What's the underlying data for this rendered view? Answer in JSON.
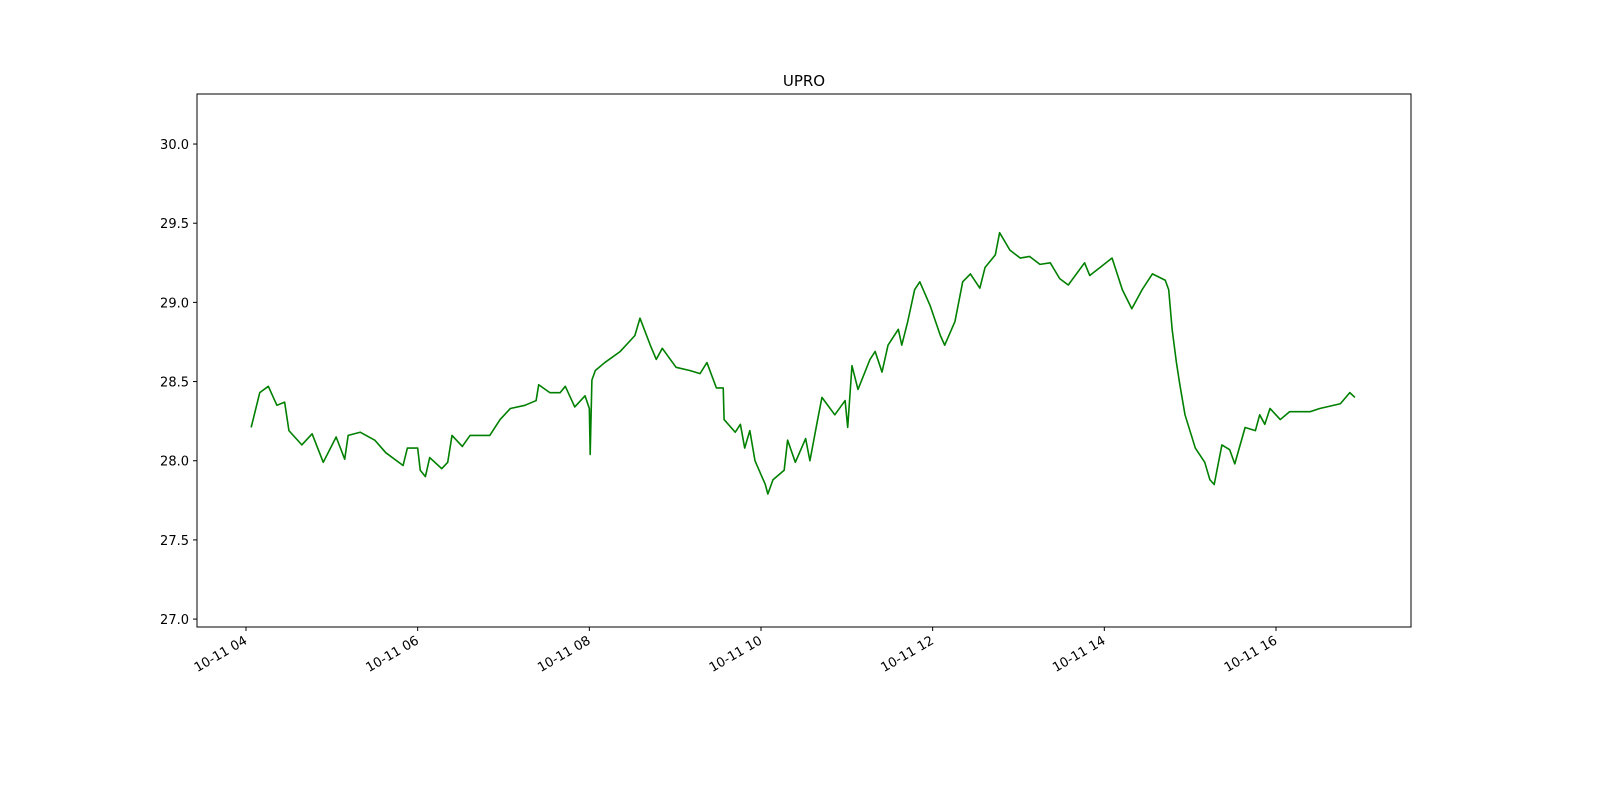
{
  "chart_data": {
    "type": "line",
    "title": "UPRO",
    "color": "#008000",
    "x": [
      4.06,
      4.16,
      4.26,
      4.36,
      4.45,
      4.5,
      4.65,
      4.77,
      4.9,
      5.05,
      5.15,
      5.19,
      5.33,
      5.5,
      5.63,
      5.83,
      5.88,
      6.0,
      6.03,
      6.09,
      6.14,
      6.28,
      6.35,
      6.4,
      6.52,
      6.61,
      6.84,
      6.96,
      7.08,
      7.25,
      7.38,
      7.41,
      7.54,
      7.66,
      7.72,
      7.83,
      7.95,
      8.0,
      8.01,
      8.03,
      8.07,
      8.18,
      8.36,
      8.53,
      8.59,
      8.71,
      8.78,
      8.85,
      9.01,
      9.17,
      9.29,
      9.37,
      9.48,
      9.56,
      9.57,
      9.7,
      9.76,
      9.81,
      9.87,
      9.93,
      10.05,
      10.08,
      10.14,
      10.27,
      10.31,
      10.4,
      10.52,
      10.57,
      10.66,
      10.71,
      10.86,
      10.98,
      11.01,
      11.06,
      11.13,
      11.27,
      11.33,
      11.41,
      11.48,
      11.6,
      11.64,
      11.71,
      11.79,
      11.85,
      11.97,
      12.09,
      12.14,
      12.26,
      12.35,
      12.44,
      12.55,
      12.61,
      12.73,
      12.78,
      12.9,
      13.02,
      13.13,
      13.25,
      13.37,
      13.48,
      13.58,
      13.77,
      13.83,
      13.95,
      14.09,
      14.21,
      14.32,
      14.44,
      14.56,
      14.71,
      14.75,
      14.79,
      14.84,
      14.88,
      14.94,
      15.06,
      15.17,
      15.23,
      15.28,
      15.37,
      15.46,
      15.52,
      15.64,
      15.76,
      15.81,
      15.87,
      15.93,
      16.05,
      16.16,
      16.4,
      16.51,
      16.75,
      16.86,
      16.92
    ],
    "values": [
      28.21,
      28.43,
      28.47,
      28.35,
      28.37,
      28.19,
      28.1,
      28.17,
      27.99,
      28.15,
      28.01,
      28.16,
      28.18,
      28.13,
      28.05,
      27.97,
      28.08,
      28.08,
      27.94,
      27.9,
      28.02,
      27.95,
      27.99,
      28.16,
      28.09,
      28.16,
      28.16,
      28.26,
      28.33,
      28.35,
      28.38,
      28.48,
      28.43,
      28.43,
      28.47,
      28.34,
      28.41,
      28.33,
      28.04,
      28.51,
      28.57,
      28.62,
      28.69,
      28.79,
      28.9,
      28.73,
      28.64,
      28.71,
      28.59,
      28.57,
      28.55,
      28.62,
      28.46,
      28.46,
      28.26,
      28.18,
      28.23,
      28.08,
      28.19,
      28.0,
      27.85,
      27.79,
      27.88,
      27.94,
      28.13,
      27.99,
      28.14,
      28.0,
      28.26,
      28.4,
      28.29,
      28.38,
      28.21,
      28.6,
      28.45,
      28.64,
      28.69,
      28.56,
      28.73,
      28.83,
      28.73,
      28.88,
      29.08,
      29.13,
      28.98,
      28.79,
      28.73,
      28.88,
      29.13,
      29.18,
      29.09,
      29.22,
      29.3,
      29.44,
      29.33,
      29.28,
      29.29,
      29.24,
      29.25,
      29.15,
      29.11,
      29.25,
      29.17,
      29.22,
      29.28,
      29.08,
      28.96,
      29.08,
      29.18,
      29.14,
      29.08,
      28.83,
      28.62,
      28.48,
      28.29,
      28.08,
      27.99,
      27.88,
      27.85,
      28.1,
      28.07,
      27.98,
      28.21,
      28.19,
      28.29,
      28.23,
      28.33,
      28.26,
      28.31,
      28.31,
      28.33,
      28.36,
      28.43,
      28.4
    ],
    "xlim": [
      3.429,
      17.573
    ],
    "xticks": [
      {
        "value": 4,
        "label": "10-11 04"
      },
      {
        "value": 6,
        "label": "10-11 06"
      },
      {
        "value": 8,
        "label": "10-11 08"
      },
      {
        "value": 10,
        "label": "10-11 10"
      },
      {
        "value": 12,
        "label": "10-11 12"
      },
      {
        "value": 14,
        "label": "10-11 14"
      },
      {
        "value": 16,
        "label": "10-11 16"
      }
    ],
    "ylim": [
      26.95,
      30.316
    ],
    "yticks": [
      {
        "value": 27,
        "label": "27.0"
      },
      27.5,
      {
        "value": 28,
        "label": "28.0"
      },
      28.5,
      {
        "value": 29,
        "label": "29.0"
      },
      29.5,
      {
        "value": 30,
        "label": "30.0"
      }
    ]
  }
}
